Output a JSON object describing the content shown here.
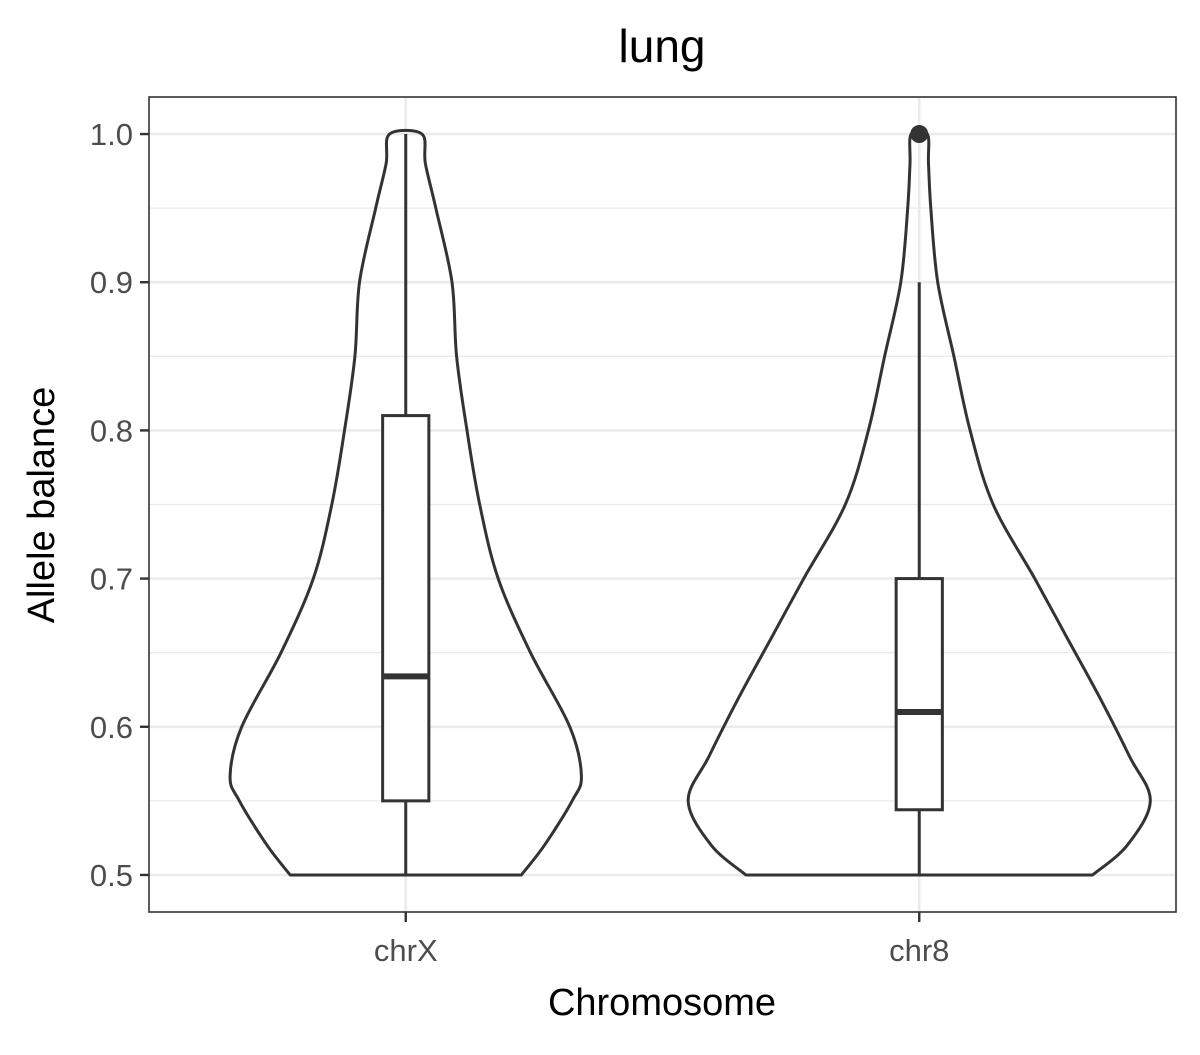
{
  "chart_data": {
    "type": "violin",
    "title": "lung",
    "xlabel": "Chromosome",
    "ylabel": "Allele balance",
    "ylim": [
      0.475,
      1.025
    ],
    "y_ticks": [
      0.5,
      0.6,
      0.7,
      0.8,
      0.9,
      1.0
    ],
    "y_tick_labels": [
      "0.5",
      "0.6",
      "0.7",
      "0.8",
      "0.9",
      "1.0"
    ],
    "categories": [
      "chrX",
      "chr8"
    ],
    "grid": true,
    "legend": "none",
    "colors": {
      "outline": "#333333",
      "grid": "#ebebeb",
      "panel_border": "#333333",
      "point": "#333333"
    },
    "groups": [
      {
        "name": "chrX",
        "box": {
          "min": 0.5,
          "q1": 0.55,
          "median": 0.634,
          "q3": 0.81,
          "max": 1.0
        },
        "outliers": [],
        "density": [
          [
            0.5,
            0.5
          ],
          [
            0.52,
            0.6
          ],
          [
            0.55,
            0.72
          ],
          [
            0.567,
            0.76
          ],
          [
            0.6,
            0.71
          ],
          [
            0.65,
            0.54
          ],
          [
            0.7,
            0.4
          ],
          [
            0.75,
            0.32
          ],
          [
            0.8,
            0.265
          ],
          [
            0.85,
            0.22
          ],
          [
            0.9,
            0.2
          ],
          [
            0.95,
            0.13
          ],
          [
            0.98,
            0.085
          ],
          [
            1.0,
            0.07
          ]
        ]
      },
      {
        "name": "chr8",
        "box": {
          "min": 0.5,
          "q1": 0.544,
          "median": 0.61,
          "q3": 0.7,
          "max": 0.9
        },
        "outliers": [
          1.0
        ],
        "density": [
          [
            0.5,
            0.75
          ],
          [
            0.52,
            0.9
          ],
          [
            0.55,
            1.0
          ],
          [
            0.58,
            0.91
          ],
          [
            0.62,
            0.78
          ],
          [
            0.66,
            0.64
          ],
          [
            0.7,
            0.5
          ],
          [
            0.75,
            0.32
          ],
          [
            0.8,
            0.22
          ],
          [
            0.85,
            0.15
          ],
          [
            0.9,
            0.08
          ],
          [
            0.95,
            0.05
          ],
          [
            0.98,
            0.04
          ],
          [
            1.0,
            0.035
          ]
        ]
      }
    ]
  }
}
